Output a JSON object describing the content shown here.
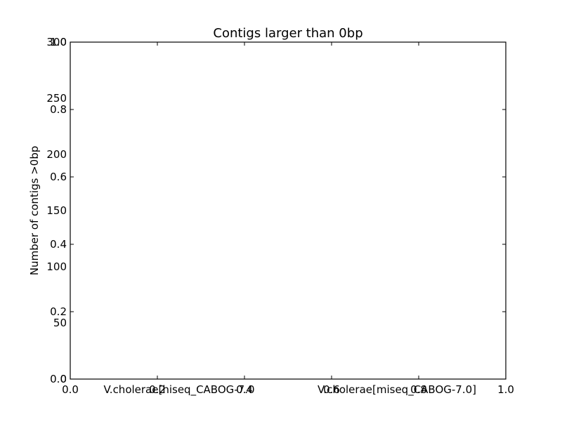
{
  "chart_data": {
    "type": "bar",
    "title": "Contigs larger than 0bp",
    "xlabel": "",
    "ylabel": "Number of contigs >0bp",
    "categories": [
      "V.cholerae[hiseq_CABOG-7.0",
      "V.cholerae[miseq_CABOG-7.0]"
    ],
    "series": [
      {
        "values": [
          null,
          null
        ]
      }
    ],
    "ylim": [
      0,
      300
    ],
    "yticks": [
      "0",
      "50",
      "100",
      "150",
      "200",
      "250",
      "300"
    ],
    "axes_overlay": {
      "xlim": [
        0,
        1
      ],
      "ylim": [
        0,
        1
      ],
      "xticks": [
        "0.0",
        "0.2",
        "0.4",
        "0.6",
        "0.8",
        "1.0"
      ],
      "yticks": [
        "0.0",
        "0.2",
        "0.4",
        "0.6",
        "0.8",
        "1.0"
      ]
    },
    "grid": false,
    "legend": "none",
    "colors": {
      "axes": "#000000",
      "background": "#ffffff"
    }
  }
}
